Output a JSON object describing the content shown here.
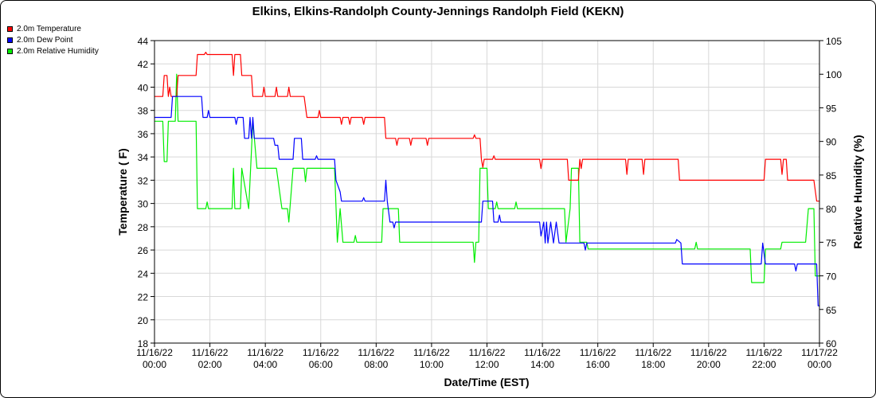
{
  "chart_data": {
    "type": "line",
    "title": "Elkins, Elkins-Randolph County-Jennings Randolph Field (KEKN)",
    "xlabel": "Date/Time (EST)",
    "ylabel_left": "Temperature ( F)",
    "ylabel_right": "Relative Humidity (%)",
    "ylim_left": [
      18,
      44
    ],
    "ylim_right": [
      60,
      105
    ],
    "yticks_left": [
      18,
      20,
      22,
      24,
      26,
      28,
      30,
      32,
      34,
      36,
      38,
      40,
      42,
      44
    ],
    "yticks_right": [
      60,
      65,
      70,
      75,
      80,
      85,
      90,
      95,
      100,
      105
    ],
    "xlim_hours": [
      0,
      24
    ],
    "xticks": [
      {
        "hour": 0,
        "date": "11/16/22",
        "time": "00:00"
      },
      {
        "hour": 2,
        "date": "11/16/22",
        "time": "02:00"
      },
      {
        "hour": 4,
        "date": "11/16/22",
        "time": "04:00"
      },
      {
        "hour": 6,
        "date": "11/16/22",
        "time": "06:00"
      },
      {
        "hour": 8,
        "date": "11/16/22",
        "time": "08:00"
      },
      {
        "hour": 10,
        "date": "11/16/22",
        "time": "10:00"
      },
      {
        "hour": 12,
        "date": "11/16/22",
        "time": "12:00"
      },
      {
        "hour": 14,
        "date": "11/16/22",
        "time": "14:00"
      },
      {
        "hour": 16,
        "date": "11/16/22",
        "time": "16:00"
      },
      {
        "hour": 18,
        "date": "11/16/22",
        "time": "18:00"
      },
      {
        "hour": 20,
        "date": "11/16/22",
        "time": "20:00"
      },
      {
        "hour": 22,
        "date": "11/16/22",
        "time": "22:00"
      },
      {
        "hour": 24,
        "date": "11/17/22",
        "time": "00:00"
      }
    ],
    "grid": true,
    "legend_position": "top-left",
    "series": [
      {
        "name": "2.0m Temperature",
        "color": "#ff0000",
        "axis": "left",
        "points": [
          [
            0.0,
            39.2
          ],
          [
            0.3,
            39.2
          ],
          [
            0.35,
            41.0
          ],
          [
            0.45,
            41.0
          ],
          [
            0.5,
            39.2
          ],
          [
            0.55,
            40.0
          ],
          [
            0.6,
            39.2
          ],
          [
            0.8,
            39.2
          ],
          [
            0.85,
            41.0
          ],
          [
            1.5,
            41.0
          ],
          [
            1.55,
            42.8
          ],
          [
            1.8,
            42.8
          ],
          [
            1.85,
            43.0
          ],
          [
            1.9,
            42.8
          ],
          [
            2.8,
            42.8
          ],
          [
            2.85,
            41.0
          ],
          [
            2.9,
            42.8
          ],
          [
            3.1,
            42.8
          ],
          [
            3.15,
            41.0
          ],
          [
            3.5,
            41.0
          ],
          [
            3.55,
            39.2
          ],
          [
            3.9,
            39.2
          ],
          [
            3.95,
            40.0
          ],
          [
            4.0,
            39.2
          ],
          [
            4.35,
            39.2
          ],
          [
            4.4,
            40.0
          ],
          [
            4.45,
            39.2
          ],
          [
            4.8,
            39.2
          ],
          [
            4.85,
            40.0
          ],
          [
            4.9,
            39.2
          ],
          [
            5.4,
            39.2
          ],
          [
            5.5,
            37.4
          ],
          [
            5.9,
            37.4
          ],
          [
            5.95,
            38.0
          ],
          [
            6.0,
            37.4
          ],
          [
            6.7,
            37.4
          ],
          [
            6.75,
            36.8
          ],
          [
            6.8,
            37.4
          ],
          [
            7.0,
            37.4
          ],
          [
            7.05,
            36.8
          ],
          [
            7.1,
            37.4
          ],
          [
            7.5,
            37.4
          ],
          [
            7.55,
            36.8
          ],
          [
            7.6,
            37.4
          ],
          [
            8.3,
            37.4
          ],
          [
            8.35,
            35.6
          ],
          [
            8.7,
            35.6
          ],
          [
            8.75,
            35.0
          ],
          [
            8.8,
            35.6
          ],
          [
            9.2,
            35.6
          ],
          [
            9.25,
            35.0
          ],
          [
            9.3,
            35.6
          ],
          [
            9.8,
            35.6
          ],
          [
            9.85,
            35.0
          ],
          [
            9.9,
            35.6
          ],
          [
            11.5,
            35.6
          ],
          [
            11.55,
            35.9
          ],
          [
            11.6,
            35.6
          ],
          [
            11.75,
            35.6
          ],
          [
            11.8,
            33.8
          ],
          [
            11.85,
            33.1
          ],
          [
            11.9,
            33.8
          ],
          [
            12.2,
            33.8
          ],
          [
            12.25,
            34.1
          ],
          [
            12.3,
            33.8
          ],
          [
            13.9,
            33.8
          ],
          [
            13.95,
            33.0
          ],
          [
            14.0,
            33.8
          ],
          [
            14.9,
            33.8
          ],
          [
            14.95,
            32.0
          ],
          [
            15.3,
            32.0
          ],
          [
            15.35,
            33.8
          ],
          [
            15.4,
            33.0
          ],
          [
            15.45,
            33.8
          ],
          [
            17.0,
            33.8
          ],
          [
            17.05,
            32.5
          ],
          [
            17.1,
            33.8
          ],
          [
            17.6,
            33.8
          ],
          [
            17.65,
            32.5
          ],
          [
            17.7,
            33.8
          ],
          [
            18.9,
            33.8
          ],
          [
            18.95,
            32.0
          ],
          [
            22.0,
            32.0
          ],
          [
            22.05,
            33.8
          ],
          [
            22.6,
            33.8
          ],
          [
            22.65,
            32.5
          ],
          [
            22.7,
            33.8
          ],
          [
            22.8,
            33.8
          ],
          [
            22.85,
            32.0
          ],
          [
            23.8,
            32.0
          ],
          [
            23.9,
            30.2
          ],
          [
            24.0,
            30.2
          ]
        ]
      },
      {
        "name": "2.0m Dew Point",
        "color": "#0000ff",
        "axis": "left",
        "points": [
          [
            0.0,
            37.4
          ],
          [
            0.6,
            37.4
          ],
          [
            0.65,
            39.2
          ],
          [
            1.7,
            39.2
          ],
          [
            1.75,
            37.4
          ],
          [
            1.9,
            37.4
          ],
          [
            1.95,
            38.0
          ],
          [
            2.0,
            37.4
          ],
          [
            2.9,
            37.4
          ],
          [
            2.95,
            36.8
          ],
          [
            3.0,
            37.4
          ],
          [
            3.2,
            37.4
          ],
          [
            3.25,
            35.6
          ],
          [
            3.4,
            35.6
          ],
          [
            3.45,
            37.4
          ],
          [
            3.5,
            35.6
          ],
          [
            3.55,
            37.4
          ],
          [
            3.6,
            35.6
          ],
          [
            4.3,
            35.6
          ],
          [
            4.35,
            35.0
          ],
          [
            4.45,
            35.0
          ],
          [
            4.5,
            33.8
          ],
          [
            5.0,
            33.8
          ],
          [
            5.05,
            35.6
          ],
          [
            5.3,
            35.6
          ],
          [
            5.35,
            33.8
          ],
          [
            5.8,
            33.8
          ],
          [
            5.85,
            34.1
          ],
          [
            5.9,
            33.8
          ],
          [
            6.5,
            33.8
          ],
          [
            6.55,
            32.0
          ],
          [
            6.7,
            31.0
          ],
          [
            6.75,
            30.2
          ],
          [
            7.5,
            30.2
          ],
          [
            7.55,
            30.5
          ],
          [
            7.6,
            30.2
          ],
          [
            8.3,
            30.2
          ],
          [
            8.35,
            32.0
          ],
          [
            8.4,
            30.2
          ],
          [
            8.5,
            28.4
          ],
          [
            8.6,
            28.4
          ],
          [
            8.65,
            27.9
          ],
          [
            8.7,
            28.4
          ],
          [
            11.8,
            28.4
          ],
          [
            11.85,
            30.2
          ],
          [
            12.2,
            30.2
          ],
          [
            12.25,
            28.4
          ],
          [
            12.4,
            28.4
          ],
          [
            12.45,
            29.0
          ],
          [
            12.5,
            28.4
          ],
          [
            13.9,
            28.4
          ],
          [
            13.95,
            27.2
          ],
          [
            14.05,
            28.4
          ],
          [
            14.1,
            26.6
          ],
          [
            14.15,
            28.4
          ],
          [
            14.2,
            26.6
          ],
          [
            14.3,
            28.4
          ],
          [
            14.4,
            26.6
          ],
          [
            14.5,
            28.4
          ],
          [
            14.6,
            26.6
          ],
          [
            15.5,
            26.6
          ],
          [
            15.55,
            26.0
          ],
          [
            15.6,
            26.6
          ],
          [
            18.8,
            26.6
          ],
          [
            18.85,
            26.9
          ],
          [
            19.0,
            26.6
          ],
          [
            19.05,
            24.8
          ],
          [
            21.9,
            24.8
          ],
          [
            21.95,
            26.6
          ],
          [
            22.05,
            24.8
          ],
          [
            23.1,
            24.8
          ],
          [
            23.15,
            24.2
          ],
          [
            23.2,
            24.8
          ],
          [
            23.9,
            24.8
          ],
          [
            23.95,
            21.2
          ],
          [
            24.0,
            21.2
          ]
        ]
      },
      {
        "name": "2.0m Relative Humidity",
        "color": "#00ee00",
        "axis": "right",
        "points": [
          [
            0.0,
            93.0
          ],
          [
            0.3,
            93.0
          ],
          [
            0.35,
            87.0
          ],
          [
            0.45,
            87.0
          ],
          [
            0.5,
            93.0
          ],
          [
            0.75,
            93.0
          ],
          [
            0.8,
            100.0
          ],
          [
            0.85,
            93.0
          ],
          [
            1.5,
            93.0
          ],
          [
            1.55,
            80.0
          ],
          [
            1.85,
            80.0
          ],
          [
            1.9,
            81.0
          ],
          [
            1.95,
            80.0
          ],
          [
            2.8,
            80.0
          ],
          [
            2.85,
            86.0
          ],
          [
            2.9,
            80.0
          ],
          [
            3.1,
            80.0
          ],
          [
            3.15,
            86.0
          ],
          [
            3.4,
            80.0
          ],
          [
            3.55,
            93.0
          ],
          [
            3.7,
            86.0
          ],
          [
            4.4,
            86.0
          ],
          [
            4.6,
            80.0
          ],
          [
            4.8,
            80.0
          ],
          [
            4.85,
            78.0
          ],
          [
            5.0,
            86.0
          ],
          [
            5.4,
            86.0
          ],
          [
            5.45,
            84.0
          ],
          [
            5.5,
            86.0
          ],
          [
            6.5,
            86.0
          ],
          [
            6.6,
            75.0
          ],
          [
            6.7,
            80.0
          ],
          [
            6.8,
            75.0
          ],
          [
            7.2,
            75.0
          ],
          [
            7.25,
            76.0
          ],
          [
            7.3,
            75.0
          ],
          [
            8.2,
            75.0
          ],
          [
            8.25,
            80.0
          ],
          [
            8.8,
            80.0
          ],
          [
            8.85,
            75.0
          ],
          [
            11.5,
            75.0
          ],
          [
            11.55,
            72.0
          ],
          [
            11.6,
            75.0
          ],
          [
            11.7,
            75.0
          ],
          [
            11.75,
            86.0
          ],
          [
            12.0,
            86.0
          ],
          [
            12.05,
            80.0
          ],
          [
            12.3,
            80.0
          ],
          [
            12.35,
            81.0
          ],
          [
            12.4,
            80.0
          ],
          [
            13.0,
            80.0
          ],
          [
            13.05,
            81.0
          ],
          [
            13.1,
            80.0
          ],
          [
            14.8,
            80.0
          ],
          [
            14.85,
            75.0
          ],
          [
            15.0,
            80.0
          ],
          [
            15.05,
            86.0
          ],
          [
            15.3,
            86.0
          ],
          [
            15.35,
            75.0
          ],
          [
            15.6,
            75.0
          ],
          [
            15.65,
            74.0
          ],
          [
            19.5,
            74.0
          ],
          [
            19.55,
            75.0
          ],
          [
            19.6,
            74.0
          ],
          [
            21.5,
            74.0
          ],
          [
            21.55,
            69.0
          ],
          [
            22.0,
            69.0
          ],
          [
            22.05,
            74.0
          ],
          [
            22.6,
            74.0
          ],
          [
            22.65,
            75.0
          ],
          [
            23.5,
            75.0
          ],
          [
            23.6,
            80.0
          ],
          [
            23.8,
            80.0
          ],
          [
            23.85,
            70.0
          ],
          [
            24.0,
            70.0
          ]
        ]
      }
    ]
  }
}
